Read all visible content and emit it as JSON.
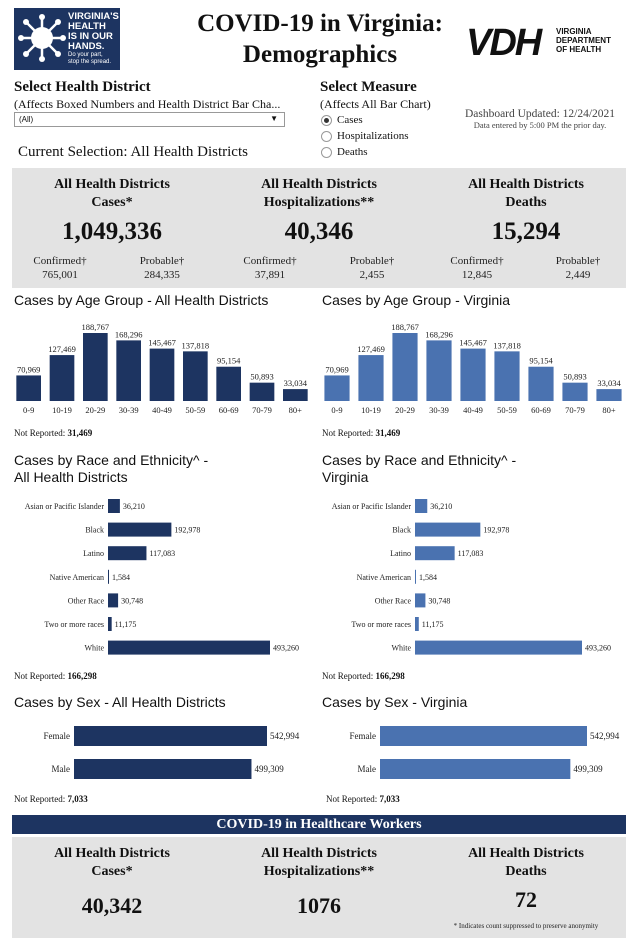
{
  "logo_left": {
    "line1": "VIRGINIA'S",
    "line2": "HEALTH",
    "line3": "IS IN OUR",
    "line4": "HANDS.",
    "tag1": "Do your part,",
    "tag2": "stop the spread."
  },
  "title": {
    "line1": "COVID-19 in Virginia:",
    "line2": "Demographics"
  },
  "logo_right": {
    "mark": "VDH",
    "line1": "VIRGINIA",
    "line2": "DEPARTMENT",
    "line3": "OF HEALTH"
  },
  "controls": {
    "district_label": "Select Health District",
    "district_sub": "(Affects Boxed Numbers and Health District Bar Cha...",
    "district_value": "(All)",
    "current_selection": "Current Selection: All Health Districts",
    "measure_label": "Select Measure",
    "measure_sub": "(Affects All Bar Chart)",
    "measures": [
      {
        "label": "Cases",
        "selected": true
      },
      {
        "label": "Hospitalizations",
        "selected": false
      },
      {
        "label": "Deaths",
        "selected": false
      }
    ],
    "updated": "Dashboard Updated: 12/24/2021",
    "updated_note": "Data entered by 5:00 PM the prior day."
  },
  "kpis": [
    {
      "title1": "All Health Districts",
      "title2": "Cases*",
      "value": "1,049,336",
      "conf_label": "Confirmed†",
      "conf_value": "765,001",
      "prob_label": "Probable†",
      "prob_value": "284,335"
    },
    {
      "title1": "All Health Districts",
      "title2": "Hospitalizations**",
      "value": "40,346",
      "conf_label": "Confirmed†",
      "conf_value": "37,891",
      "prob_label": "Probable†",
      "prob_value": "2,455"
    },
    {
      "title1": "All Health Districts",
      "title2": "Deaths",
      "value": "15,294",
      "conf_label": "Confirmed†",
      "conf_value": "12,845",
      "prob_label": "Probable†",
      "prob_value": "2,449"
    }
  ],
  "colors": {
    "dark": "#1d3461",
    "light": "#4a72b0",
    "panel": "#e3e3e3"
  },
  "age_charts": {
    "left_title": "Cases by Age Group - All Health Districts",
    "right_title": "Cases by Age Group - Virginia",
    "not_reported_label": "Not Reported:",
    "left_not_reported": "31,469",
    "right_not_reported": "31,469"
  },
  "race_charts": {
    "left_title1": "Cases by Race and Ethnicity^ -",
    "left_title2": "All Health Districts",
    "right_title1": "Cases by Race and Ethnicity^ -",
    "right_title2": "Virginia",
    "not_reported_label": "Not Reported:",
    "left_not_reported": "166,298",
    "right_not_reported": "166,298"
  },
  "sex_charts": {
    "left_title": "Cases by Sex - All Health Districts",
    "right_title": "Cases by Sex - Virginia",
    "not_reported_label": "Not Reported:",
    "left_not_reported": "7,033",
    "right_not_reported": "7,033"
  },
  "chart_data": [
    {
      "type": "bar",
      "title": "Cases by Age Group - All Health Districts",
      "categories": [
        "0-9",
        "10-19",
        "20-29",
        "30-39",
        "40-49",
        "50-59",
        "60-69",
        "70-79",
        "80+"
      ],
      "values": [
        70969,
        127469,
        188767,
        168296,
        145467,
        137818,
        95154,
        50893,
        33034
      ],
      "labels": [
        "70,969",
        "127,469",
        "188,767",
        "168,296",
        "145,467",
        "137,818",
        "95,154",
        "50,893",
        "33,034"
      ],
      "ylim": [
        0,
        188767
      ]
    },
    {
      "type": "bar",
      "title": "Cases by Age Group - Virginia",
      "categories": [
        "0-9",
        "10-19",
        "20-29",
        "30-39",
        "40-49",
        "50-59",
        "60-69",
        "70-79",
        "80+"
      ],
      "values": [
        70969,
        127469,
        188767,
        168296,
        145467,
        137818,
        95154,
        50893,
        33034
      ],
      "labels": [
        "70,969",
        "127,469",
        "188,767",
        "168,296",
        "145,467",
        "137,818",
        "95,154",
        "50,893",
        "33,034"
      ],
      "ylim": [
        0,
        188767
      ]
    },
    {
      "type": "bar",
      "orientation": "horizontal",
      "title": "Cases by Race and Ethnicity^ - All Health Districts",
      "categories": [
        "Asian or Pacific Islander",
        "Black",
        "Latino",
        "Native American",
        "Other Race",
        "Two or more races",
        "White"
      ],
      "values": [
        36210,
        192978,
        117083,
        1584,
        30748,
        11175,
        493260
      ],
      "labels": [
        "36,210",
        "192,978",
        "117,083",
        "1,584",
        "30,748",
        "11,175",
        "493,260"
      ],
      "xlim": [
        0,
        493260
      ]
    },
    {
      "type": "bar",
      "orientation": "horizontal",
      "title": "Cases by Race and Ethnicity^ - Virginia",
      "categories": [
        "Asian or Pacific Islander",
        "Black",
        "Latino",
        "Native American",
        "Other Race",
        "Two or more races",
        "White"
      ],
      "values": [
        36210,
        192978,
        117083,
        1584,
        30748,
        11175,
        493260
      ],
      "labels": [
        "36,210",
        "192,978",
        "117,083",
        "1,584",
        "30,748",
        "11,175",
        "493,260"
      ],
      "xlim": [
        0,
        493260
      ]
    },
    {
      "type": "bar",
      "orientation": "horizontal",
      "title": "Cases by Sex - All Health Districts",
      "categories": [
        "Female",
        "Male"
      ],
      "values": [
        542994,
        499309
      ],
      "labels": [
        "542,994",
        "499,309"
      ],
      "xlim": [
        0,
        542994
      ]
    },
    {
      "type": "bar",
      "orientation": "horizontal",
      "title": "Cases by Sex - Virginia",
      "categories": [
        "Female",
        "Male"
      ],
      "values": [
        542994,
        499309
      ],
      "labels": [
        "542,994",
        "499,309"
      ],
      "xlim": [
        0,
        542994
      ]
    }
  ],
  "hcw": {
    "banner": "COVID-19 in Healthcare Workers",
    "kpis": [
      {
        "title1": "All Health Districts",
        "title2": "Cases*",
        "value": "40,342"
      },
      {
        "title1": "All Health Districts",
        "title2": "Hospitalizations**",
        "value": "1076"
      },
      {
        "title1": "All Health Districts",
        "title2": "Deaths",
        "value": "72"
      }
    ],
    "footnote": "* Indicates count suppressed to preserve anonymity"
  }
}
